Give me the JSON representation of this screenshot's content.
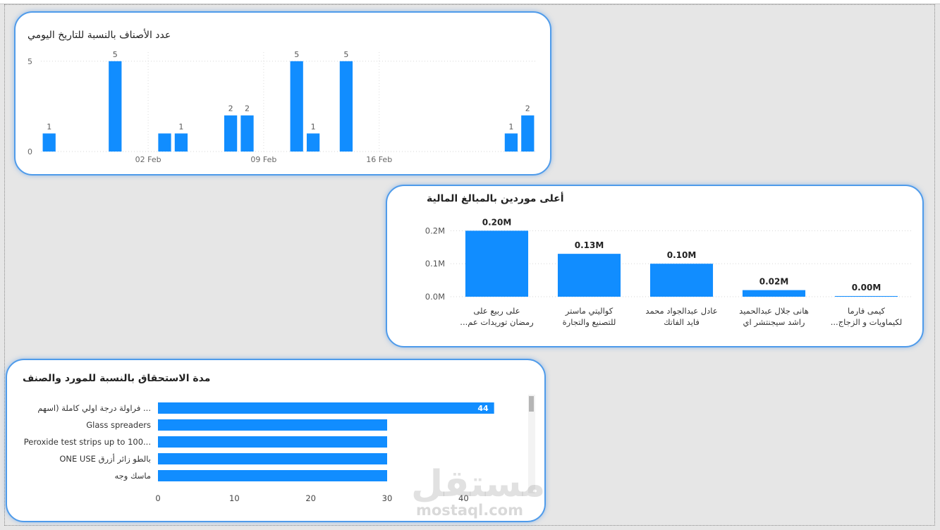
{
  "chart_data": [
    {
      "type": "bar",
      "title": "عدد الأصناف بالنسبة للتاريخ اليومي",
      "x": [
        "2024-01-27",
        "2024-01-28",
        "2024-01-29",
        "2024-01-30",
        "2024-01-31",
        "2024-02-01",
        "2024-02-02",
        "2024-02-03",
        "2024-02-04",
        "2024-02-05",
        "2024-02-06",
        "2024-02-07",
        "2024-02-08",
        "2024-02-09",
        "2024-02-10",
        "2024-02-11",
        "2024-02-12",
        "2024-02-13",
        "2024-02-14",
        "2024-02-15",
        "2024-02-16",
        "2024-02-17",
        "2024-02-18",
        "2024-02-19",
        "2024-02-20",
        "2024-02-21",
        "2024-02-22",
        "2024-02-23",
        "2024-02-24",
        "2024-02-25"
      ],
      "values": [
        1,
        null,
        null,
        null,
        5,
        null,
        null,
        1,
        1,
        null,
        null,
        2,
        2,
        null,
        null,
        5,
        1,
        null,
        5,
        null,
        null,
        null,
        null,
        null,
        null,
        null,
        null,
        null,
        1,
        2
      ],
      "value_labels": [
        "1",
        "",
        "",
        "",
        "5",
        "",
        "",
        "",
        "1",
        "",
        "",
        "2",
        "2",
        "",
        "",
        "5",
        "1",
        "",
        "5",
        "",
        "",
        "",
        "",
        "",
        "",
        "",
        "",
        "",
        "1",
        "2"
      ],
      "x_tick_labels": [
        "02 Feb",
        "09 Feb",
        "16 Feb"
      ],
      "y_ticks": [
        "0",
        "5"
      ],
      "ylim": [
        0,
        5.5
      ],
      "grid": true,
      "bar_color": "#118dff"
    },
    {
      "type": "bar",
      "title": "أعلى موردين بالمبالغ المالية",
      "categories": [
        [
          "على ربيع على",
          "رمضان توريدات عم..."
        ],
        [
          "كواليتي ماستر",
          "للتصنيع والتجارة"
        ],
        [
          "عادل عبدالجواد محمد",
          "فايد الفاتك"
        ],
        [
          "هانى جلال عبدالحميد",
          "راشد سيجنتشر اي"
        ],
        [
          "كيمى فارما",
          "لكيماويات و الزجاج..."
        ]
      ],
      "values": [
        200000,
        130000,
        100000,
        20000,
        1000
      ],
      "value_labels": [
        "0.20M",
        "0.13M",
        "0.10M",
        "0.02M",
        "0.00M"
      ],
      "y_ticks": [
        "0.0M",
        "0.1M",
        "0.2M"
      ],
      "ylim": [
        0,
        220000
      ],
      "grid": true,
      "bar_color": "#118dff"
    },
    {
      "type": "bar",
      "orientation": "horizontal",
      "title": "مدة الاستحقاق بالنسبة للمورد والصنف",
      "categories": [
        "فراولة درجة اولي كاملة (اسهم ...",
        "Glass spreaders",
        "Peroxide test strips up to 100...",
        "ONE USE بالطو زائر أزرق",
        "ماسك وجه"
      ],
      "values": [
        44,
        30,
        30,
        30,
        30
      ],
      "value_labels": [
        "44",
        "",
        "",
        "",
        ""
      ],
      "x_ticks": [
        "0",
        "10",
        "20",
        "30",
        "40"
      ],
      "xlim": [
        0,
        48
      ],
      "bar_color": "#118dff"
    }
  ],
  "watermark": {
    "logo_text": "مستقل",
    "url": "mostaql.com"
  }
}
